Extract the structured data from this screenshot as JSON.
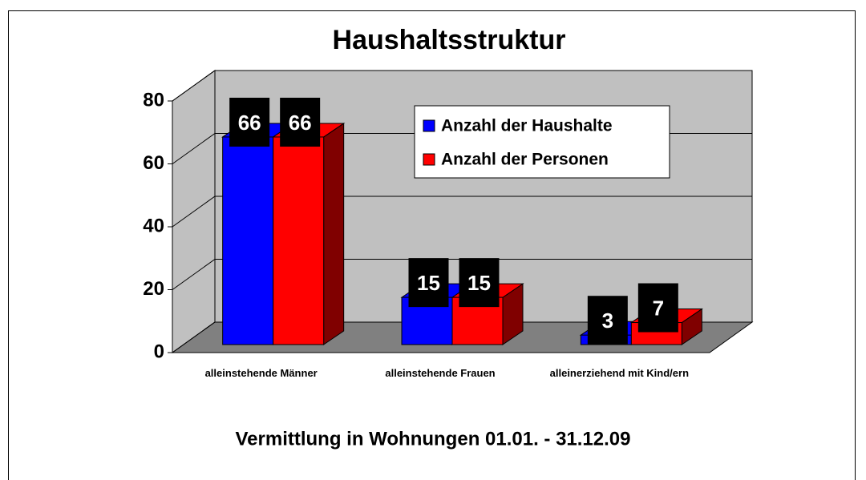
{
  "chart_data": {
    "type": "bar3d",
    "title": "Haushaltsstruktur",
    "subtitle": "Vermittlung in Wohnungen 01.01. - 31.12.09",
    "categories": [
      "alleinstehende Männer",
      "alleinstehende Frauen",
      "alleinerziehend mit Kind/ern"
    ],
    "series": [
      {
        "name": "Anzahl der Haushalte",
        "color": "#0000ff",
        "values": [
          66,
          15,
          3
        ]
      },
      {
        "name": "Anzahl der Personen",
        "color": "#ff0000",
        "values": [
          66,
          15,
          7
        ]
      }
    ],
    "ylim": [
      0,
      80
    ],
    "yticks": [
      0,
      20,
      40,
      60,
      80
    ],
    "grid": true,
    "legend": "top-right"
  }
}
